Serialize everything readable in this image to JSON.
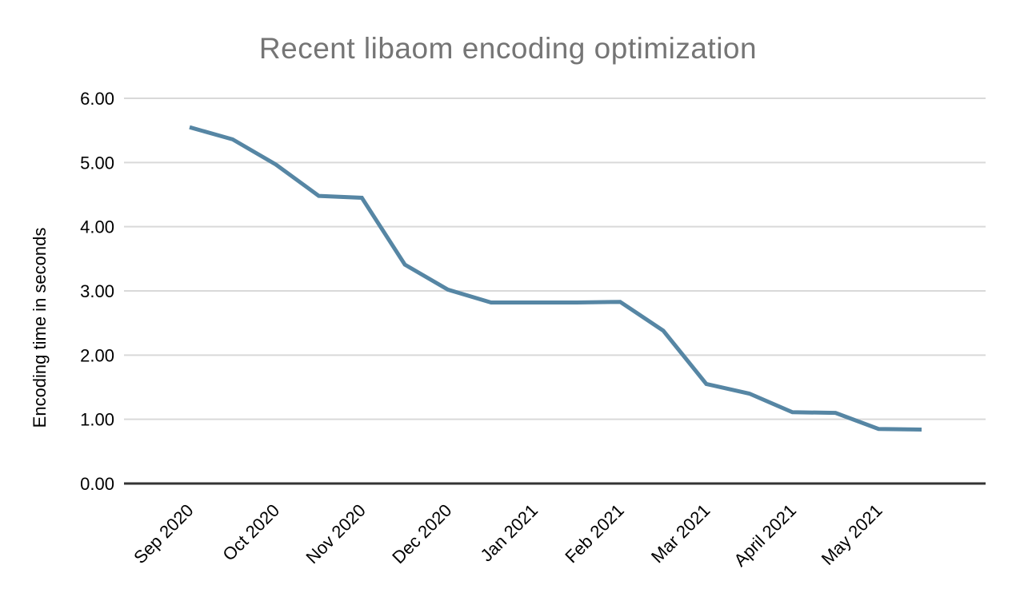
{
  "chart": {
    "title": "Recent libaom encoding optimization",
    "y_axis_title": "Encoding time in seconds"
  },
  "chart_data": {
    "type": "line",
    "title": "Recent libaom encoding optimization",
    "xlabel": "",
    "ylabel": "Encoding time in seconds",
    "ylim": [
      0,
      6
    ],
    "y_tick_labels": [
      "0.00",
      "1.00",
      "2.00",
      "3.00",
      "4.00",
      "5.00",
      "6.00"
    ],
    "x_tick_labels": [
      "Sep 2020",
      "Oct 2020",
      "Nov 2020",
      "Dec 2020",
      "Jan 2021",
      "Feb 2021",
      "Mar 2021",
      "April 2021",
      "May 2021"
    ],
    "x_tick_point_indices": [
      0,
      2,
      4,
      6,
      8,
      10,
      12,
      14,
      16
    ],
    "values": [
      5.55,
      5.36,
      4.97,
      4.48,
      4.45,
      3.41,
      3.02,
      2.82,
      2.82,
      2.82,
      2.83,
      2.38,
      1.55,
      1.4,
      1.11,
      1.1,
      0.85,
      0.84
    ],
    "grid": true,
    "legend": "none"
  },
  "colors": {
    "line": "#5686a4",
    "grid": "#d9d9d9",
    "axis": "#333333",
    "title_text": "#757575",
    "tick_text": "#000000",
    "background": "#ffffff"
  }
}
